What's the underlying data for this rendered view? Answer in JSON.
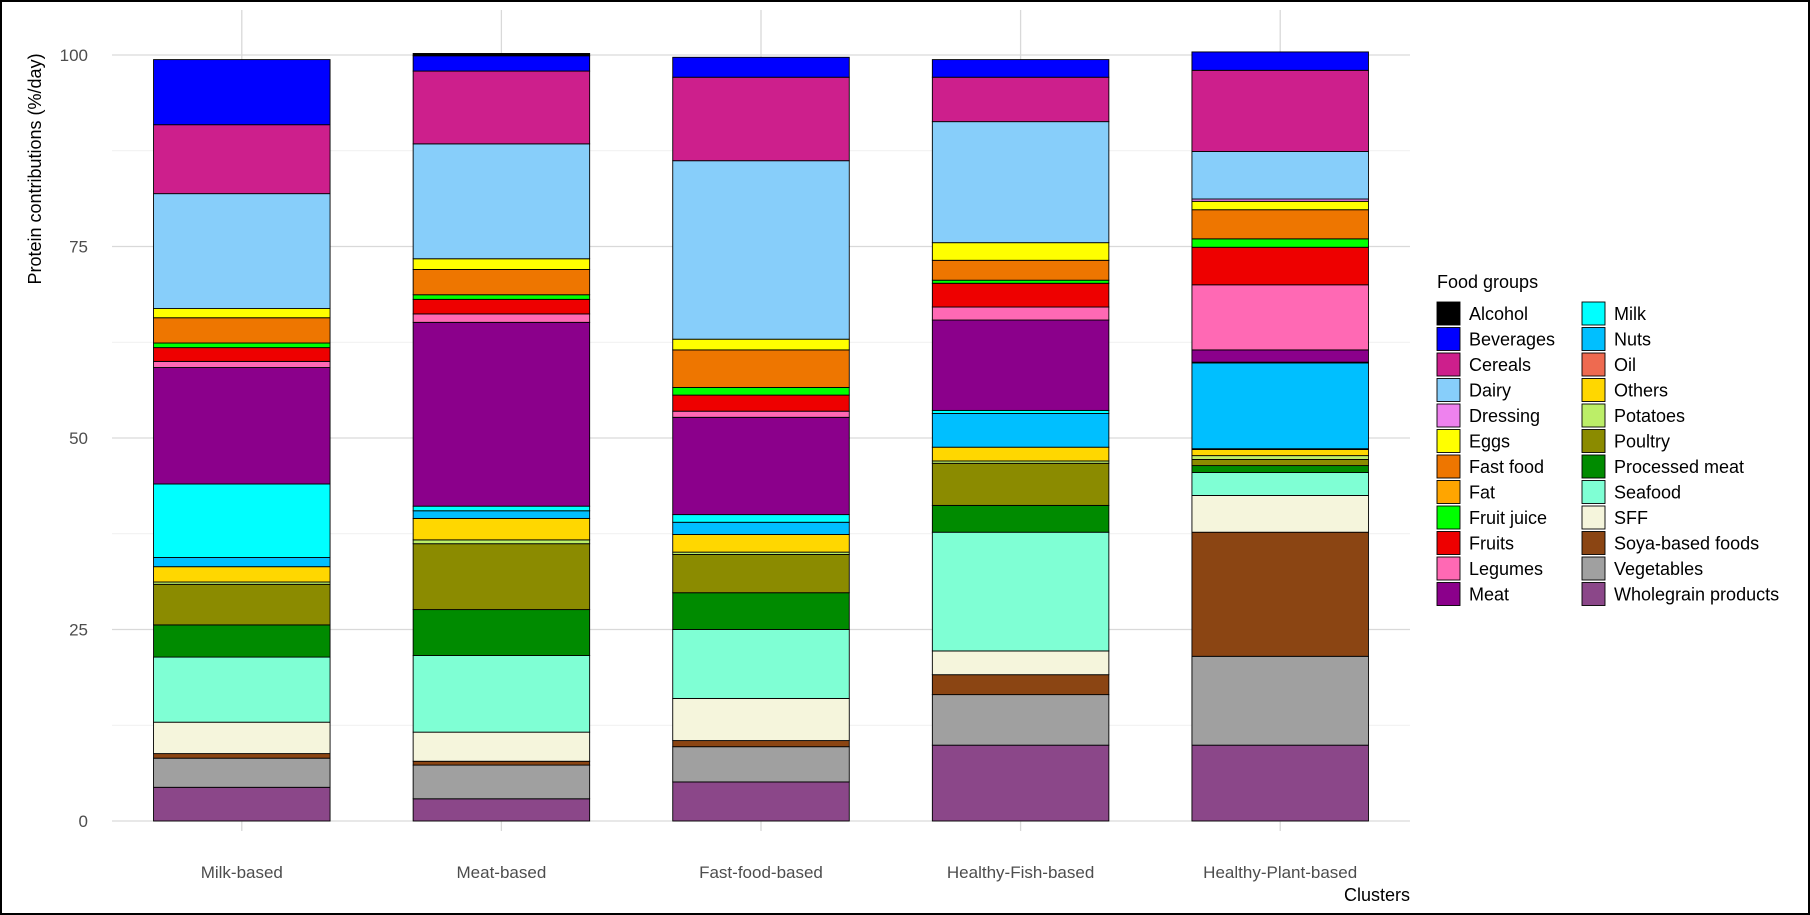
{
  "chart_data": {
    "type": "bar",
    "stacked": true,
    "xlabel": "Clusters",
    "ylabel": "Protein contributions (%/day)",
    "ylim": [
      0,
      100
    ],
    "yticks": [
      0,
      25,
      50,
      75,
      100
    ],
    "grid": true,
    "legend_title": "Food groups",
    "legend_position": "right",
    "categories": [
      "Milk-based",
      "Meat-based",
      "Fast-food-based",
      "Healthy-Fish-based",
      "Healthy-Plant-based"
    ],
    "series": [
      {
        "name": "Alcohol",
        "color": "#000000",
        "values": [
          0,
          0.3,
          0,
          0,
          0
        ]
      },
      {
        "name": "Beverages",
        "color": "#0000FF",
        "values": [
          8.5,
          2,
          2.6,
          2.3,
          2.4
        ]
      },
      {
        "name": "Cereals",
        "color": "#CD1F8C",
        "values": [
          9,
          9.5,
          10.9,
          5.8,
          10.6
        ]
      },
      {
        "name": "Dairy",
        "color": "#87CEFA",
        "values": [
          15,
          15,
          23.3,
          15.8,
          6.2
        ]
      },
      {
        "name": "Dressing",
        "color": "#EE82EE",
        "values": [
          0,
          0,
          0,
          0,
          0.3
        ]
      },
      {
        "name": "Eggs",
        "color": "#FFFF00",
        "values": [
          1.2,
          1.4,
          1.4,
          2.3,
          1.1
        ]
      },
      {
        "name": "Fast food",
        "color": "#EE7600",
        "values": [
          3.3,
          3.3,
          4.9,
          2.6,
          3.8
        ]
      },
      {
        "name": "Fat",
        "color": "#FFA500",
        "values": [
          0,
          0,
          0,
          0,
          0
        ]
      },
      {
        "name": "Fruit juice",
        "color": "#00FF00",
        "values": [
          0.6,
          0.6,
          1,
          0.4,
          1.1
        ]
      },
      {
        "name": "Fruits",
        "color": "#EE0000",
        "values": [
          1.8,
          1.9,
          2.1,
          3.1,
          4.9
        ]
      },
      {
        "name": "Legumes",
        "color": "#FF69B4",
        "values": [
          0.8,
          1.1,
          0.8,
          1.7,
          8.5
        ]
      },
      {
        "name": "Meat",
        "color": "#8B008B",
        "values": [
          15.2,
          24,
          12.7,
          11.8,
          1.6
        ]
      },
      {
        "name": "Milk",
        "color": "#00FFFF",
        "values": [
          9.6,
          0.6,
          1,
          0.4,
          0.1
        ]
      },
      {
        "name": "Nuts",
        "color": "#00BFFF",
        "values": [
          1.2,
          1,
          1.6,
          4.4,
          11.2
        ]
      },
      {
        "name": "Oil",
        "color": "#EE6A50",
        "values": [
          0,
          0,
          0,
          0,
          0.1
        ]
      },
      {
        "name": "Others",
        "color": "#FFD700",
        "values": [
          2,
          2.8,
          2.3,
          1.8,
          0.8
        ]
      },
      {
        "name": "Potatoes",
        "color": "#BCEE68",
        "values": [
          0.3,
          0.5,
          0.3,
          0.3,
          0.5
        ]
      },
      {
        "name": "Poultry",
        "color": "#8B8B00",
        "values": [
          5.3,
          8.6,
          5,
          5.5,
          0.8
        ]
      },
      {
        "name": "Processed meat",
        "color": "#008B00",
        "values": [
          4.2,
          6,
          4.8,
          3.5,
          0.9
        ]
      },
      {
        "name": "Seafood",
        "color": "#7FFFD4",
        "values": [
          8.5,
          10,
          9,
          15.5,
          3
        ]
      },
      {
        "name": "SFF",
        "color": "#F5F5DC",
        "values": [
          4.1,
          3.8,
          5.5,
          3.1,
          4.8
        ]
      },
      {
        "name": "Soya-based foods",
        "color": "#8B4513",
        "values": [
          0.6,
          0.5,
          0.8,
          2.6,
          16.2
        ]
      },
      {
        "name": "Vegetables",
        "color": "#A0A0A0",
        "values": [
          3.8,
          4.4,
          4.6,
          6.6,
          11.6
        ]
      },
      {
        "name": "Wholegrain products",
        "color": "#8B4789",
        "values": [
          4.4,
          2.9,
          5.1,
          9.9,
          9.9
        ]
      }
    ]
  }
}
